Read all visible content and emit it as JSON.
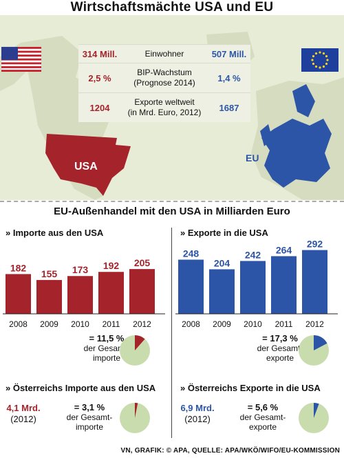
{
  "title": "Wirtschaftsmächte USA und EU",
  "map_labels": {
    "usa": "USA",
    "eu": "EU"
  },
  "comparison": [
    {
      "usa": "314 Mill.",
      "label_1": "Einwohner",
      "label_2": "",
      "eu": "507 Mill."
    },
    {
      "usa": "2,5 %",
      "label_1": "BIP-Wachstum",
      "label_2": "(Prognose 2014)",
      "eu": "1,4 %"
    },
    {
      "usa": "1204",
      "label_1": "Exporte weltweit",
      "label_2": "(in Mrd. Euro, 2012)",
      "eu": "1687"
    }
  ],
  "section_title": "EU-Außenhandel mit den USA in Milliarden Euro",
  "colors": {
    "usa_red": "#a5232b",
    "eu_blue": "#2c54a7",
    "map_land": "#d6dcc0",
    "pie_bg": "#c9dcae"
  },
  "chart_data": [
    {
      "type": "bar",
      "title": "» Importe aus den USA",
      "categories": [
        "2008",
        "2009",
        "2010",
        "2011",
        "2012"
      ],
      "values": [
        182,
        155,
        173,
        192,
        205
      ],
      "color": "#a5232b"
    },
    {
      "type": "bar",
      "title": "» Exporte in die USA",
      "categories": [
        "2008",
        "2009",
        "2010",
        "2011",
        "2012"
      ],
      "values": [
        248,
        204,
        242,
        264,
        292
      ],
      "color": "#2c54a7"
    },
    {
      "type": "pie",
      "values": [
        11.5
      ],
      "color": "#a5232b",
      "label_value": "= 11,5 %",
      "label_1": "der Gesamt-",
      "label_2": "importe"
    },
    {
      "type": "pie",
      "values": [
        17.3
      ],
      "color": "#2c54a7",
      "label_value": "= 17,3 %",
      "label_1": "der Gesamt-",
      "label_2": "exporte"
    },
    {
      "type": "pie",
      "values": [
        3.1
      ],
      "color": "#a5232b",
      "label_value": "= 3,1 %",
      "label_1": "der Gesamt-",
      "label_2": "importe"
    },
    {
      "type": "pie",
      "values": [
        5.6
      ],
      "color": "#2c54a7",
      "label_value": "= 5,6 %",
      "label_1": "der Gesamt-",
      "label_2": "exporte"
    }
  ],
  "austria": {
    "imports_title": "» Österreichs Importe aus den USA",
    "imports_value": "4,1 Mrd.",
    "imports_year": "(2012)",
    "exports_title": "» Österreichs Exporte in die USA",
    "exports_value": "6,9 Mrd.",
    "exports_year": "(2012)"
  },
  "source": "VN, GRAFIK: © APA, QUELLE: APA/WKÖ/WIFO/EU-KOMMISSION"
}
